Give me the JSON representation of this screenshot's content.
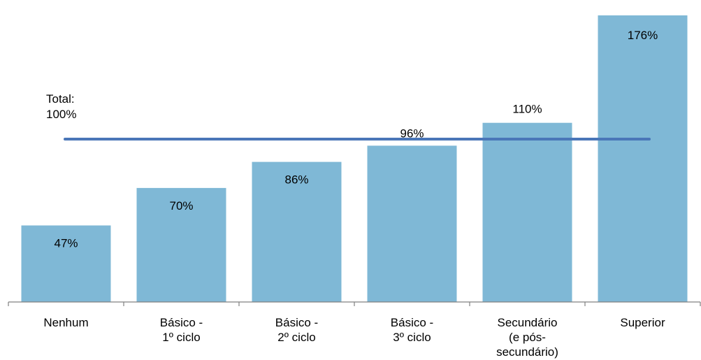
{
  "chart_data": {
    "type": "bar",
    "categories": [
      [
        "Nenhum"
      ],
      [
        "Básico -",
        "1º ciclo"
      ],
      [
        "Básico -",
        "2º ciclo"
      ],
      [
        "Básico -",
        "3º ciclo"
      ],
      [
        "Secundário",
        "(e pós-",
        "secundário)"
      ],
      [
        "Superior"
      ]
    ],
    "values": [
      47,
      70,
      86,
      96,
      110,
      176
    ],
    "value_labels": [
      "47%",
      "70%",
      "86%",
      "96%",
      "110%",
      "176%"
    ],
    "reference_line": {
      "value": 100,
      "label": [
        "Total:",
        "100%"
      ]
    },
    "ylim": [
      0,
      182
    ],
    "grid": false,
    "legend": "none",
    "colors": {
      "bar": "#7fb8d6",
      "line": "#4a76b8",
      "axis": "#808080"
    }
  }
}
